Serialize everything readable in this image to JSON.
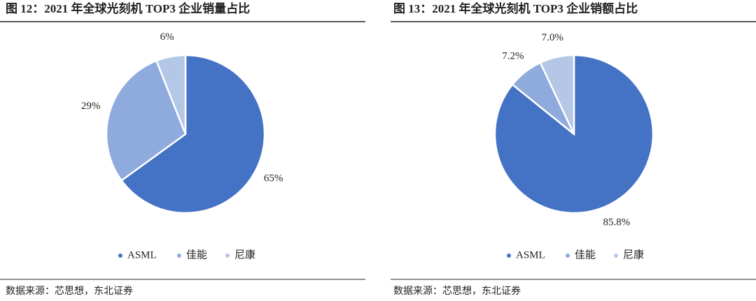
{
  "chart_data": [
    {
      "type": "pie",
      "title": "图 12：2021 年全球光刻机 TOP3 企业销量占比",
      "categories": [
        "ASML",
        "佳能",
        "尼康"
      ],
      "values": [
        65,
        29,
        6
      ],
      "value_labels": [
        "65%",
        "29%",
        "6%"
      ],
      "colors": [
        "#4472c4",
        "#8faadc",
        "#b4c7e7"
      ],
      "source": "数据来源：芯思想，东北证券"
    },
    {
      "type": "pie",
      "title": "图 13：2021 年全球光刻机 TOP3 企业销额占比",
      "categories": [
        "ASML",
        "佳能",
        "尼康"
      ],
      "values": [
        85.8,
        7.2,
        7.0
      ],
      "value_labels": [
        "85.8%",
        "7.2%",
        "7.0%"
      ],
      "colors": [
        "#4472c4",
        "#8faadc",
        "#b4c7e7"
      ],
      "source": "数据来源：芯思想，东北证券"
    }
  ]
}
